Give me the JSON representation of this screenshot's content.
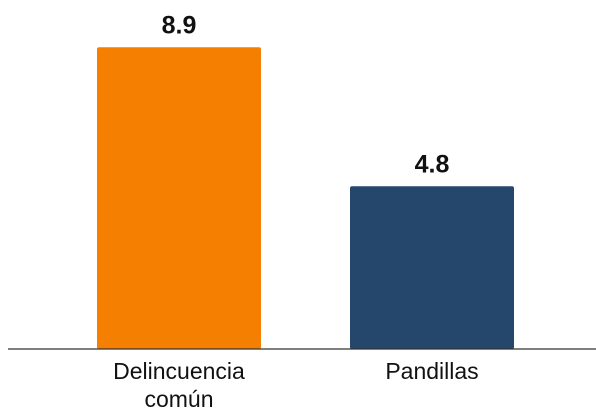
{
  "chart_data": {
    "type": "bar",
    "categories": [
      "Delincuencia común",
      "Pandillas"
    ],
    "category_lines": [
      [
        "Delincuencia",
        "común"
      ],
      [
        "Pandillas"
      ]
    ],
    "values": [
      8.9,
      4.8
    ],
    "value_labels": [
      "8.9",
      "4.8"
    ],
    "colors": [
      "#f57f01",
      "#24476b"
    ],
    "ylim": [
      0,
      10
    ],
    "grid": false,
    "legend": "none"
  }
}
